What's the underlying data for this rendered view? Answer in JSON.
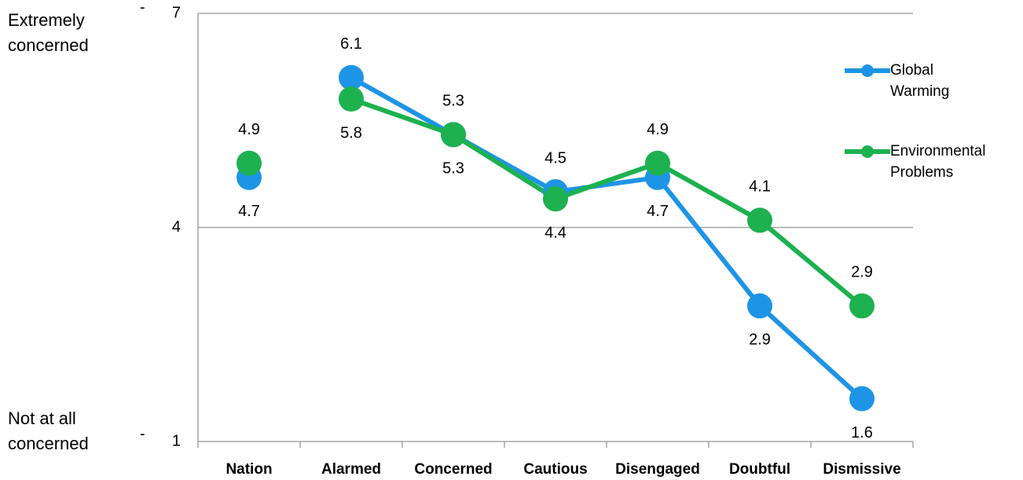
{
  "chart_data": {
    "type": "line",
    "categories": [
      "Nation",
      "Alarmed",
      "Concerned",
      "Cautious",
      "Disengaged",
      "Doubtful",
      "Dismissive"
    ],
    "series": [
      {
        "name": "Global Warming",
        "color": "#1e94e6",
        "values": [
          4.7,
          6.1,
          5.3,
          4.5,
          4.7,
          2.9,
          1.6
        ]
      },
      {
        "name": "Environmental Problems",
        "color": "#1db150",
        "values": [
          4.9,
          5.8,
          5.3,
          4.4,
          4.9,
          4.1,
          2.9
        ]
      }
    ],
    "ylim": [
      1,
      7
    ],
    "yticks": [
      1,
      4,
      7
    ],
    "grid": true,
    "legend": "right",
    "annotations": [
      "Extremely concerned",
      "Not at all concerned"
    ]
  }
}
